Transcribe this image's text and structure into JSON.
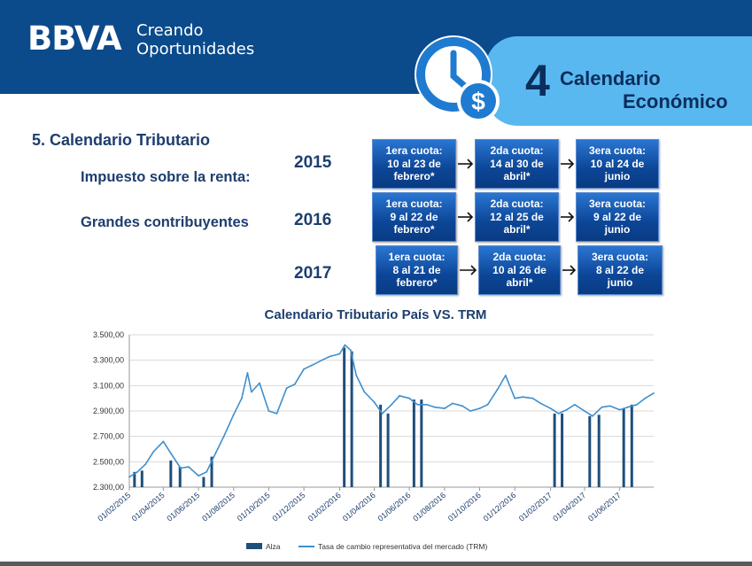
{
  "header": {
    "logo": "BBVA",
    "tagline_line1": "Creando",
    "tagline_line2": "Oportunidades",
    "section_number": "4",
    "section_title_line1": "Calendario",
    "section_title_line2": "Económico",
    "icon": "clock-dollar-icon",
    "colors": {
      "header_bg": "#0b4a8b",
      "section_bg": "#5ab8f0",
      "icon": "#1e7bd0"
    }
  },
  "page_title": "5. Calendario Tributario",
  "labels": {
    "renta": "Impuesto sobre la renta:",
    "grandes": "Grandes contribuyentes"
  },
  "schedule": [
    {
      "year": "2015",
      "cuotas": [
        {
          "l1": "1era cuota:",
          "l2": "10 al 23 de",
          "l3": "febrero*"
        },
        {
          "l1": "2da cuota:",
          "l2": "14 al  30 de",
          "l3": "abril*"
        },
        {
          "l1": "3era cuota:",
          "l2": "10 al 24 de",
          "l3": "junio"
        }
      ]
    },
    {
      "year": "2016",
      "cuotas": [
        {
          "l1": "1era cuota:",
          "l2": "9 al 22 de",
          "l3": "febrero*"
        },
        {
          "l1": "2da cuota:",
          "l2": "12 al  25 de",
          "l3": "abril*"
        },
        {
          "l1": "3era cuota:",
          "l2": "9 al 22 de",
          "l3": "junio"
        }
      ]
    },
    {
      "year": "2017",
      "cuotas": [
        {
          "l1": "1era cuota:",
          "l2": "8 al 21 de",
          "l3": "febrero*"
        },
        {
          "l1": "2da cuota:",
          "l2": "10 al  26 de",
          "l3": "abril*"
        },
        {
          "l1": "3era cuota:",
          "l2": "8 al 22 de",
          "l3": "junio"
        }
      ]
    }
  ],
  "chart_data": {
    "type": "line",
    "title": "Calendario Tributario País VS. TRM",
    "x_range": [
      "01/02/2015",
      "30/07/2017"
    ],
    "ylim": [
      2300,
      3500
    ],
    "y_ticks": [
      "2.300,00",
      "2.500,00",
      "2.700,00",
      "2.900,00",
      "3.100,00",
      "3.300,00",
      "3.500,00"
    ],
    "x_tick_labels": [
      "01/02/2015",
      "01/04/2015",
      "01/06/2015",
      "01/08/2015",
      "01/10/2015",
      "01/12/2015",
      "01/02/2016",
      "01/04/2016",
      "01/06/2016",
      "01/08/2016",
      "01/10/2016",
      "01/12/2016",
      "01/02/2017",
      "01/04/2017",
      "01/06/2017"
    ],
    "grid": true,
    "legend_position": "bottom",
    "colors": {
      "line": "#3f8fcd",
      "bars": "#1f4e7a",
      "grid": "#d9d9d9"
    },
    "series": [
      {
        "name": "Tasa de cambio representativa del mercado (TRM)",
        "type": "line",
        "x": [
          "01/02/2015",
          "15/02/2015",
          "01/03/2015",
          "15/03/2015",
          "01/04/2015",
          "15/04/2015",
          "01/05/2015",
          "15/05/2015",
          "01/06/2015",
          "15/06/2015",
          "01/07/2015",
          "15/07/2015",
          "01/08/2015",
          "15/08/2015",
          "25/08/2015",
          "01/09/2015",
          "15/09/2015",
          "01/10/2015",
          "15/10/2015",
          "01/11/2015",
          "15/11/2015",
          "01/12/2015",
          "15/12/2015",
          "01/01/2016",
          "15/01/2016",
          "01/02/2016",
          "10/02/2016",
          "20/02/2016",
          "01/03/2016",
          "15/03/2016",
          "01/04/2016",
          "15/04/2016",
          "01/05/2016",
          "15/05/2016",
          "01/06/2016",
          "15/06/2016",
          "01/07/2016",
          "15/07/2016",
          "01/08/2016",
          "15/08/2016",
          "01/09/2016",
          "15/09/2016",
          "01/10/2016",
          "15/10/2016",
          "01/11/2016",
          "15/11/2016",
          "01/12/2016",
          "15/12/2016",
          "01/01/2017",
          "15/01/2017",
          "01/02/2017",
          "15/02/2017",
          "01/03/2017",
          "15/03/2017",
          "01/04/2017",
          "15/04/2017",
          "01/05/2017",
          "15/05/2017",
          "01/06/2017",
          "15/06/2017",
          "01/07/2017",
          "15/07/2017",
          "30/07/2017"
        ],
        "values": [
          2380,
          2420,
          2480,
          2580,
          2660,
          2560,
          2450,
          2460,
          2390,
          2420,
          2570,
          2700,
          2870,
          3000,
          3200,
          3050,
          3120,
          2900,
          2880,
          3080,
          3110,
          3230,
          3260,
          3300,
          3330,
          3350,
          3420,
          3380,
          3180,
          3050,
          2970,
          2880,
          2950,
          3020,
          3000,
          2950,
          2950,
          2930,
          2920,
          2960,
          2940,
          2900,
          2920,
          2950,
          3070,
          3180,
          3000,
          3010,
          3000,
          2960,
          2920,
          2880,
          2910,
          2950,
          2900,
          2860,
          2930,
          2940,
          2910,
          2930,
          2950,
          3000,
          3040
        ]
      },
      {
        "name": "Alza",
        "type": "bar",
        "x": [
          "10/02/2015",
          "23/02/2015",
          "14/04/2015",
          "30/04/2015",
          "10/06/2015",
          "24/06/2015",
          "09/02/2016",
          "22/02/2016",
          "12/04/2016",
          "25/04/2016",
          "09/06/2016",
          "22/06/2016",
          "08/02/2017",
          "21/02/2017",
          "10/04/2017",
          "26/04/2017",
          "08/06/2017",
          "22/06/2017"
        ],
        "values": [
          2420,
          2430,
          2510,
          2460,
          2380,
          2540,
          3400,
          3370,
          2950,
          2880,
          2990,
          2990,
          2880,
          2880,
          2860,
          2870,
          2920,
          2950
        ]
      }
    ]
  }
}
